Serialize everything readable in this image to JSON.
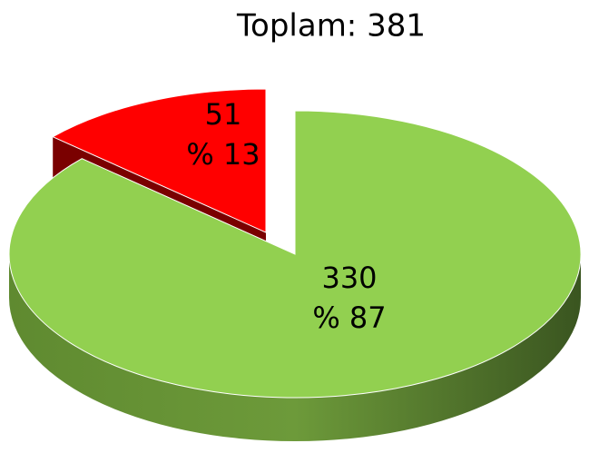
{
  "chart_data": {
    "type": "pie",
    "title": "Toplam: 381",
    "categories": [
      null,
      null
    ],
    "values": [
      330,
      51
    ],
    "percent_labels": [
      "% 87",
      "% 13"
    ],
    "colors": [
      "#92d050",
      "#ff0000"
    ]
  }
}
